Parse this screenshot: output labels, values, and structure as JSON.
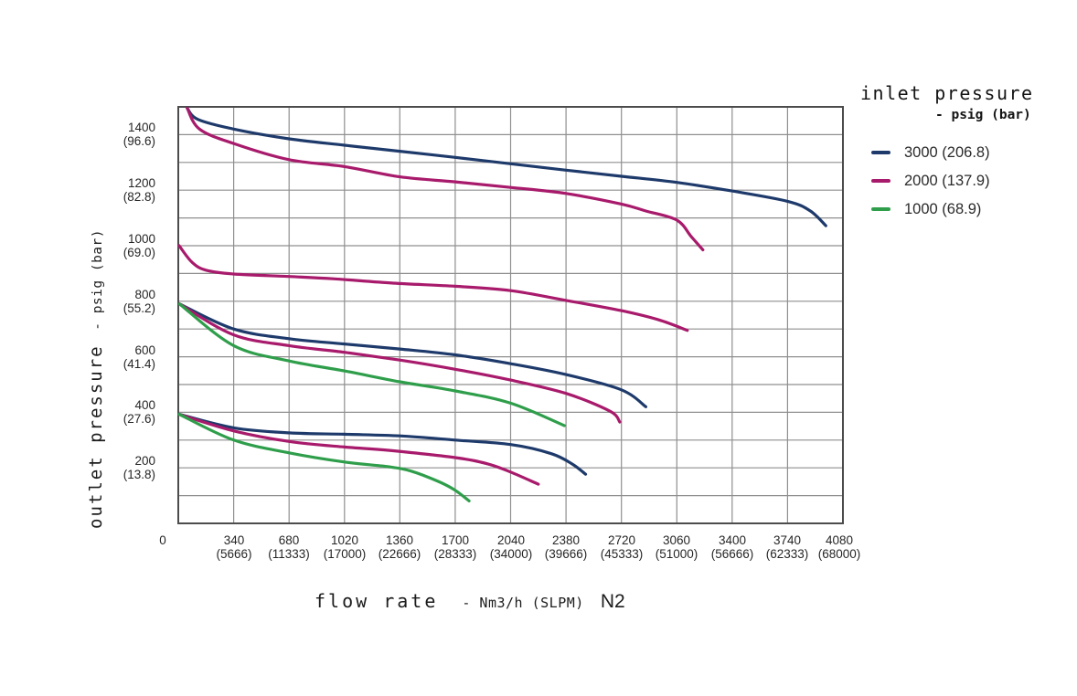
{
  "chart_data": {
    "type": "line",
    "title": "",
    "xlabel": {
      "main": "flow rate",
      "unit": "- Nm3/h (SLPM)",
      "gas": "N2"
    },
    "ylabel": {
      "main": "outlet pressure",
      "unit": "- psig (bar)"
    },
    "xlim": [
      0,
      4080
    ],
    "ylim": [
      0,
      1500
    ],
    "x_grid_step": 340,
    "y_grid_step": 100,
    "grid": true,
    "grid_color": "#8f8f8f",
    "border_color": "#4c4c4c",
    "text_color": "#262626",
    "legend": {
      "title": "inlet pressure",
      "unit": "- psig (bar)",
      "position": "top-right",
      "items": [
        {
          "label": "3000 (206.8)",
          "color": "#1e3a6b"
        },
        {
          "label": "2000 (137.9)",
          "color": "#a81a6b"
        },
        {
          "label": "1000 (68.9)",
          "color": "#2f9e4b"
        }
      ]
    },
    "x_ticks": [
      {
        "flow": "0",
        "slpm": ""
      },
      {
        "flow": "340",
        "slpm": "(5666)"
      },
      {
        "flow": "680",
        "slpm": "(11333)"
      },
      {
        "flow": "1020",
        "slpm": "(17000)"
      },
      {
        "flow": "1360",
        "slpm": "(22666)"
      },
      {
        "flow": "1700",
        "slpm": "(28333)"
      },
      {
        "flow": "2040",
        "slpm": "(34000)"
      },
      {
        "flow": "2380",
        "slpm": "(39666)"
      },
      {
        "flow": "2720",
        "slpm": "(45333)"
      },
      {
        "flow": "3060",
        "slpm": "(51000)"
      },
      {
        "flow": "3400",
        "slpm": "(56666)"
      },
      {
        "flow": "3740",
        "slpm": "(62333)"
      },
      {
        "flow": "4080",
        "slpm": "(68000)"
      }
    ],
    "y_ticks": [
      {
        "psig": "1400",
        "bar": "(96.6)"
      },
      {
        "psig": "1200",
        "bar": "(82.8)"
      },
      {
        "psig": "1000",
        "bar": "(69.0)"
      },
      {
        "psig": "800",
        "bar": "(55.2)"
      },
      {
        "psig": "600",
        "bar": "(41.4)"
      },
      {
        "psig": "400",
        "bar": "(27.6)"
      },
      {
        "psig": "200",
        "bar": "(13.8)"
      }
    ],
    "series": [
      {
        "legend": "3000 (206.8)",
        "inlet_psig": 3000,
        "outlet_set_psig": 1500,
        "color": "#1e3a6b",
        "points": [
          [
            55,
            1495
          ],
          [
            120,
            1455
          ],
          [
            340,
            1420
          ],
          [
            680,
            1385
          ],
          [
            1020,
            1362
          ],
          [
            1360,
            1340
          ],
          [
            1700,
            1318
          ],
          [
            2040,
            1295
          ],
          [
            2380,
            1272
          ],
          [
            2720,
            1250
          ],
          [
            3060,
            1228
          ],
          [
            3400,
            1197
          ],
          [
            3740,
            1160
          ],
          [
            3880,
            1125
          ],
          [
            3975,
            1072
          ]
        ]
      },
      {
        "legend": "2000 (137.9)",
        "inlet_psig": 2000,
        "outlet_set_psig": 1500,
        "color": "#a81a6b",
        "points": [
          [
            55,
            1495
          ],
          [
            130,
            1420
          ],
          [
            340,
            1368
          ],
          [
            680,
            1310
          ],
          [
            1020,
            1285
          ],
          [
            1360,
            1248
          ],
          [
            1700,
            1230
          ],
          [
            2040,
            1210
          ],
          [
            2380,
            1188
          ],
          [
            2720,
            1150
          ],
          [
            2870,
            1125
          ],
          [
            3060,
            1092
          ],
          [
            3150,
            1032
          ],
          [
            3220,
            985
          ]
        ]
      },
      {
        "legend": "2000 (137.9)",
        "inlet_psig": 2000,
        "outlet_set_psig": 1000,
        "color": "#a81a6b",
        "points": [
          [
            5,
            1000
          ],
          [
            85,
            940
          ],
          [
            170,
            912
          ],
          [
            340,
            898
          ],
          [
            680,
            889
          ],
          [
            950,
            881
          ],
          [
            1320,
            865
          ],
          [
            1700,
            854
          ],
          [
            2040,
            838
          ],
          [
            2380,
            803
          ],
          [
            2720,
            766
          ],
          [
            2950,
            733
          ],
          [
            3125,
            695
          ]
        ]
      },
      {
        "legend": "3000 (206.8)",
        "inlet_psig": 3000,
        "outlet_set_psig": 790,
        "color": "#1e3a6b",
        "points": [
          [
            8,
            790
          ],
          [
            340,
            700
          ],
          [
            680,
            665
          ],
          [
            1020,
            646
          ],
          [
            1360,
            628
          ],
          [
            1700,
            607
          ],
          [
            2040,
            575
          ],
          [
            2380,
            536
          ],
          [
            2720,
            481
          ],
          [
            2870,
            420
          ]
        ]
      },
      {
        "legend": "2000 (137.9)",
        "inlet_psig": 2000,
        "outlet_set_psig": 790,
        "color": "#a81a6b",
        "points": [
          [
            8,
            790
          ],
          [
            340,
            679
          ],
          [
            680,
            640
          ],
          [
            1020,
            616
          ],
          [
            1360,
            588
          ],
          [
            1700,
            555
          ],
          [
            2040,
            516
          ],
          [
            2380,
            468
          ],
          [
            2650,
            404
          ],
          [
            2710,
            365
          ]
        ]
      },
      {
        "legend": "1000 (68.9)",
        "inlet_psig": 1000,
        "outlet_set_psig": 790,
        "color": "#2f9e4b",
        "points": [
          [
            8,
            790
          ],
          [
            340,
            640
          ],
          [
            680,
            585
          ],
          [
            1020,
            549
          ],
          [
            1360,
            510
          ],
          [
            1700,
            477
          ],
          [
            2040,
            433
          ],
          [
            2370,
            352
          ]
        ]
      },
      {
        "legend": "3000 (206.8)",
        "inlet_psig": 3000,
        "outlet_set_psig": 390,
        "color": "#1e3a6b",
        "points": [
          [
            5,
            393
          ],
          [
            340,
            344
          ],
          [
            680,
            326
          ],
          [
            1020,
            321
          ],
          [
            1360,
            315
          ],
          [
            1700,
            300
          ],
          [
            2040,
            284
          ],
          [
            2290,
            251
          ],
          [
            2420,
            213
          ],
          [
            2500,
            177
          ]
        ]
      },
      {
        "legend": "2000 (137.9)",
        "inlet_psig": 2000,
        "outlet_set_psig": 390,
        "color": "#a81a6b",
        "points": [
          [
            5,
            393
          ],
          [
            340,
            333
          ],
          [
            680,
            295
          ],
          [
            1020,
            275
          ],
          [
            1290,
            263
          ],
          [
            1700,
            237
          ],
          [
            1900,
            214
          ],
          [
            2040,
            185
          ],
          [
            2210,
            141
          ]
        ]
      },
      {
        "legend": "1000 (68.9)",
        "inlet_psig": 1000,
        "outlet_set_psig": 390,
        "color": "#2f9e4b",
        "points": [
          [
            5,
            393
          ],
          [
            340,
            300
          ],
          [
            680,
            254
          ],
          [
            1020,
            221
          ],
          [
            1290,
            204
          ],
          [
            1430,
            188
          ],
          [
            1600,
            150
          ],
          [
            1700,
            119
          ],
          [
            1785,
            81
          ]
        ]
      }
    ]
  }
}
